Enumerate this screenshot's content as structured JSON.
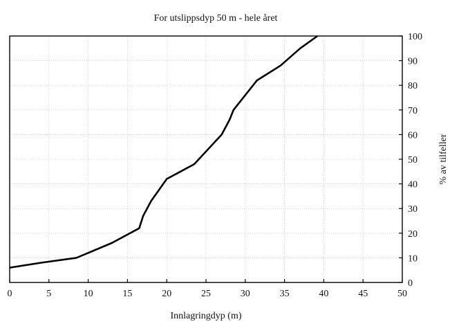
{
  "chart_data": {
    "type": "line",
    "title": "For utslippsdyp 50 m - hele året",
    "xlabel": "Innlagringdyp (m)",
    "ylabel": "% av tilfeller",
    "xlim": [
      0,
      50
    ],
    "ylim": [
      0,
      100
    ],
    "x_ticks": [
      0,
      5,
      10,
      15,
      20,
      25,
      30,
      35,
      40,
      45,
      50
    ],
    "y_ticks": [
      0,
      10,
      20,
      30,
      40,
      50,
      60,
      70,
      80,
      90,
      100
    ],
    "y_axis_side": "right",
    "grid": true,
    "series": [
      {
        "x": [
          0,
          4,
          8.5,
          13,
          16.5,
          17,
          18,
          20,
          23.5,
          27,
          28,
          28.5,
          30,
          31.5,
          34.5,
          37,
          39.2
        ],
        "y": [
          6,
          8,
          10,
          16,
          22,
          27,
          33,
          42,
          48,
          60,
          66,
          70,
          76,
          82,
          88,
          95,
          100
        ]
      }
    ]
  }
}
